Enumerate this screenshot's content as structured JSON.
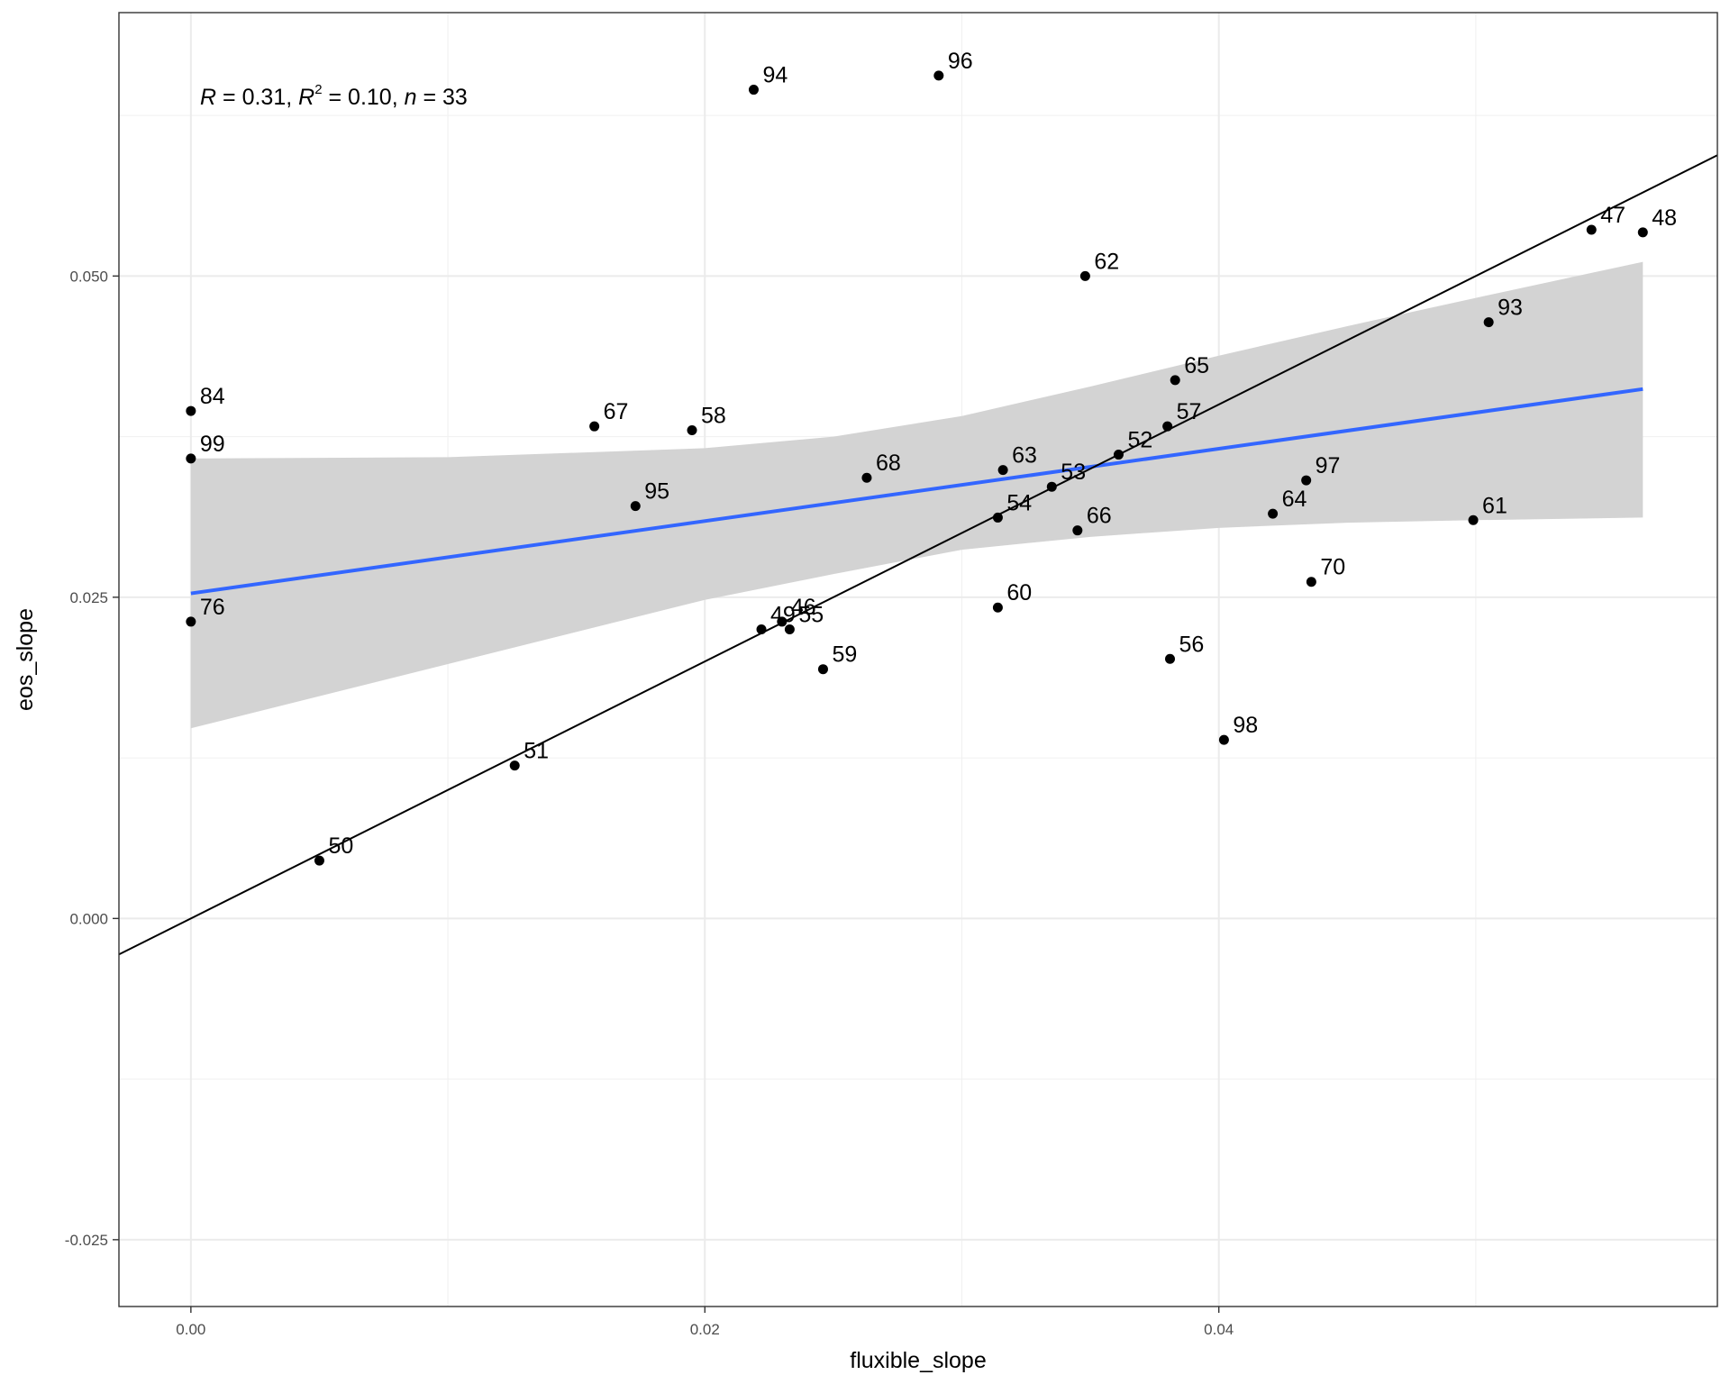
{
  "chart_data": {
    "type": "scatter",
    "xlabel": "fluxible_slope",
    "ylabel": "eos_slope",
    "xlim": [
      -0.0028,
      0.0594
    ],
    "ylim": [
      -0.0302,
      0.0705
    ],
    "x_ticks": [
      0.0,
      0.02,
      0.04
    ],
    "x_tick_labels": [
      "0.00",
      "0.02",
      "0.04"
    ],
    "y_ticks": [
      -0.025,
      0.0,
      0.025,
      0.05
    ],
    "y_tick_labels": [
      "-0.025",
      "0.000",
      "0.025",
      "0.050"
    ],
    "grid": true,
    "stats": {
      "R": "0.31",
      "R2": "0.10",
      "n": "33"
    },
    "points": [
      {
        "label": "94",
        "x": 0.0219,
        "y": 0.0645
      },
      {
        "label": "96",
        "x": 0.0291,
        "y": 0.0656
      },
      {
        "label": "47",
        "x": 0.0545,
        "y": 0.0536
      },
      {
        "label": "48",
        "x": 0.0565,
        "y": 0.0534
      },
      {
        "label": "62",
        "x": 0.0348,
        "y": 0.05
      },
      {
        "label": "93",
        "x": 0.0505,
        "y": 0.0464
      },
      {
        "label": "84",
        "x": 0.0,
        "y": 0.0395
      },
      {
        "label": "65",
        "x": 0.0383,
        "y": 0.0419
      },
      {
        "label": "67",
        "x": 0.0157,
        "y": 0.0383
      },
      {
        "label": "58",
        "x": 0.0195,
        "y": 0.038
      },
      {
        "label": "57",
        "x": 0.038,
        "y": 0.0383
      },
      {
        "label": "99",
        "x": 0.0,
        "y": 0.0358
      },
      {
        "label": "52",
        "x": 0.0361,
        "y": 0.0361
      },
      {
        "label": "63",
        "x": 0.0316,
        "y": 0.0349
      },
      {
        "label": "68",
        "x": 0.0263,
        "y": 0.0343
      },
      {
        "label": "53",
        "x": 0.0335,
        "y": 0.0336
      },
      {
        "label": "97",
        "x": 0.0434,
        "y": 0.0341
      },
      {
        "label": "95",
        "x": 0.0173,
        "y": 0.0321
      },
      {
        "label": "64",
        "x": 0.0421,
        "y": 0.0315
      },
      {
        "label": "54",
        "x": 0.0314,
        "y": 0.0312
      },
      {
        "label": "61",
        "x": 0.0499,
        "y": 0.031
      },
      {
        "label": "66",
        "x": 0.0345,
        "y": 0.0302
      },
      {
        "label": "70",
        "x": 0.0436,
        "y": 0.0262
      },
      {
        "label": "60",
        "x": 0.0314,
        "y": 0.0242
      },
      {
        "label": "76",
        "x": 0.0,
        "y": 0.0231
      },
      {
        "label": "46",
        "x": 0.023,
        "y": 0.0231
      },
      {
        "label": "49",
        "x": 0.0222,
        "y": 0.0225
      },
      {
        "label": "55",
        "x": 0.0233,
        "y": 0.0225
      },
      {
        "label": "56",
        "x": 0.0381,
        "y": 0.0202
      },
      {
        "label": "59",
        "x": 0.0246,
        "y": 0.0194
      },
      {
        "label": "98",
        "x": 0.0402,
        "y": 0.0139
      },
      {
        "label": "51",
        "x": 0.0126,
        "y": 0.0119
      },
      {
        "label": "50",
        "x": 0.005,
        "y": 0.0045
      }
    ],
    "identity_line": {
      "intercept": 0.0,
      "slope": 1.0
    },
    "regression_line": {
      "x": [
        0.0,
        0.0565
      ],
      "y": [
        0.0253,
        0.0412
      ],
      "color": "#3366ff"
    },
    "confidence_band": {
      "x": [
        0.0,
        0.01,
        0.02,
        0.025,
        0.03,
        0.035,
        0.04,
        0.045,
        0.05,
        0.0565
      ],
      "lower": [
        0.0148,
        0.0198,
        0.0248,
        0.0268,
        0.0287,
        0.0297,
        0.0304,
        0.0308,
        0.031,
        0.0312
      ],
      "upper": [
        0.0358,
        0.0359,
        0.0366,
        0.0375,
        0.0391,
        0.0414,
        0.0438,
        0.0461,
        0.0483,
        0.0511
      ],
      "color": "#d3d3d3"
    }
  }
}
